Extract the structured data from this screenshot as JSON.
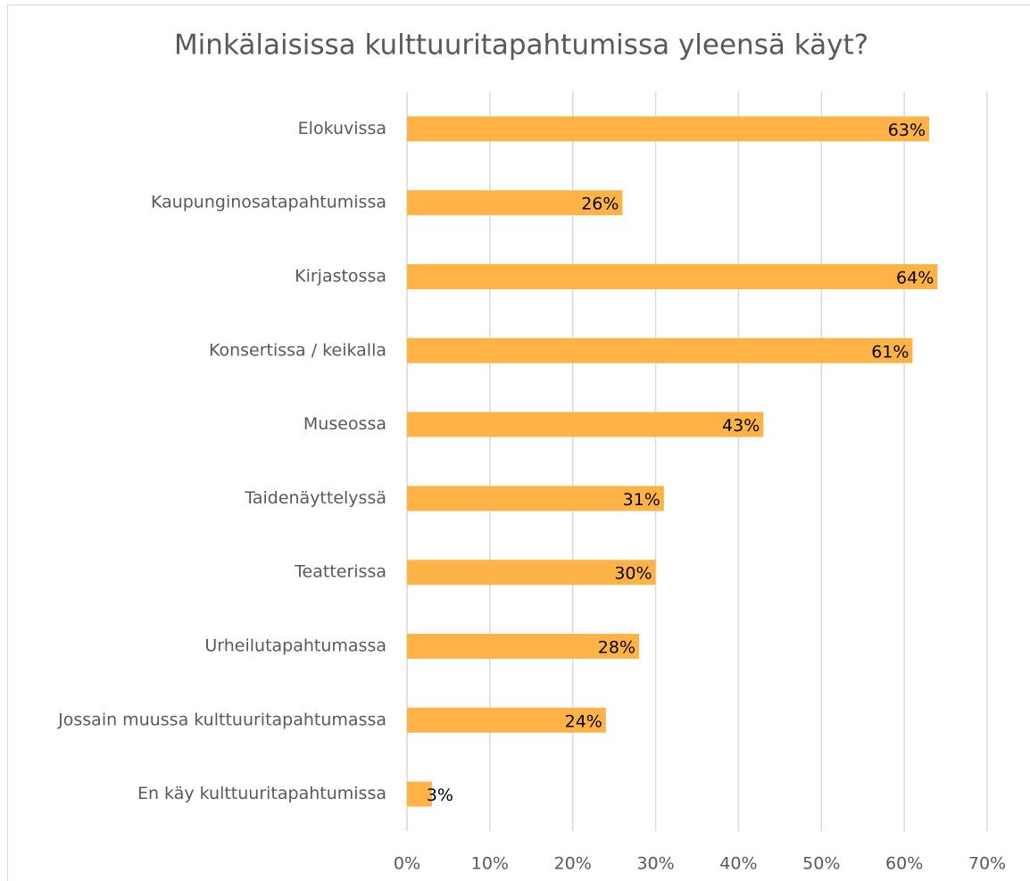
{
  "chart_data": {
    "type": "bar",
    "orientation": "horizontal",
    "title": "Minkälaisissa kulttuuritapahtumissa yleensä käyt?",
    "categories": [
      "Elokuvissa",
      "Kaupunginosatapahtumissa",
      "Kirjastossa",
      "Konsertissa / keikalla",
      "Museossa",
      "Taidenäyttelyssä",
      "Teatterissa",
      "Urheilutapahtumassa",
      "Jossain muussa kulttuuritapahtumassa",
      "En käy kulttuuritapahtumissa"
    ],
    "values": [
      63,
      26,
      64,
      61,
      43,
      31,
      30,
      28,
      24,
      3
    ],
    "value_labels": [
      "63%",
      "26%",
      "64%",
      "61%",
      "43%",
      "31%",
      "30%",
      "28%",
      "24%",
      "3%"
    ],
    "color": "#ffb347",
    "xlim": [
      0,
      70
    ],
    "xticks": [
      {
        "value": 0,
        "label": "0%"
      },
      {
        "value": 10,
        "label": "10%"
      },
      {
        "value": 20,
        "label": "20%"
      },
      {
        "value": 30,
        "label": "30%"
      },
      {
        "value": 40,
        "label": "40%"
      },
      {
        "value": 50,
        "label": "50%"
      },
      {
        "value": 60,
        "label": "60%"
      },
      {
        "value": 70,
        "label": "70%"
      }
    ],
    "grid": true
  }
}
